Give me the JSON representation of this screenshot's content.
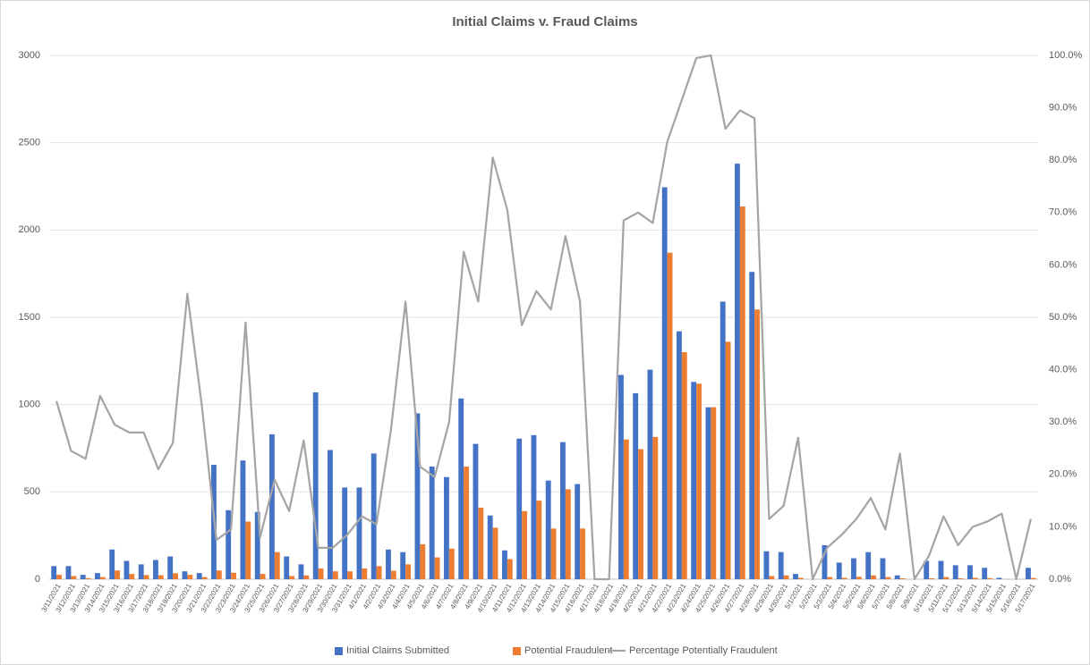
{
  "chart_data": {
    "type": "bar",
    "title": "Initial Claims v. Fraud Claims",
    "categories": [
      "3/11/2021",
      "3/12/2021",
      "3/13/2021",
      "3/14/2021",
      "3/15/2021",
      "3/16/2021",
      "3/17/2021",
      "3/18/2021",
      "3/19/2021",
      "3/20/2021",
      "3/21/2021",
      "3/22/2021",
      "3/23/2021",
      "3/24/2021",
      "3/25/2021",
      "3/26/2021",
      "3/27/2021",
      "3/28/2021",
      "3/29/2021",
      "3/30/2021",
      "3/31/2021",
      "4/1/2021",
      "4/2/2021",
      "4/3/2021",
      "4/4/2021",
      "4/5/2021",
      "4/6/2021",
      "4/7/2021",
      "4/8/2021",
      "4/9/2021",
      "4/10/2021",
      "4/11/2021",
      "4/12/2021",
      "4/13/2021",
      "4/14/2021",
      "4/15/2021",
      "4/16/2021",
      "4/17/2021",
      "4/18/2021",
      "4/19/2021",
      "4/20/2021",
      "4/21/2021",
      "4/22/2021",
      "4/23/2021",
      "4/24/2021",
      "4/25/2021",
      "4/26/2021",
      "4/27/2021",
      "4/28/2021",
      "4/29/2021",
      "4/30/2021",
      "5/1/2021",
      "5/2/2021",
      "5/3/2021",
      "5/4/2021",
      "5/5/2021",
      "5/6/2021",
      "5/7/2021",
      "5/8/2021",
      "5/9/2021",
      "5/10/2021",
      "5/11/2021",
      "5/12/2021",
      "5/13/2021",
      "5/14/2021",
      "5/15/2021",
      "5/16/2021",
      "5/17/2021"
    ],
    "series": [
      {
        "name": "Initial Claims Submitted",
        "type": "bar",
        "color": "#4472c4",
        "values": [
          75,
          75,
          25,
          35,
          170,
          105,
          85,
          110,
          130,
          45,
          35,
          655,
          395,
          680,
          385,
          830,
          130,
          85,
          1070,
          740,
          525,
          525,
          720,
          170,
          155,
          950,
          645,
          585,
          1035,
          775,
          365,
          165,
          805,
          825,
          565,
          785,
          545,
          0,
          0,
          1170,
          1065,
          1200,
          2245,
          1420,
          1130,
          985,
          1590,
          2380,
          1760,
          160,
          155,
          30,
          0,
          195,
          95,
          120,
          155,
          120,
          22,
          0,
          105,
          105,
          80,
          80,
          65,
          8,
          0,
          65
        ]
      },
      {
        "name": "Potential Fraudulent",
        "type": "bar",
        "color": "#ed7d31",
        "values": [
          25,
          18,
          6,
          12,
          50,
          30,
          24,
          23,
          34,
          25,
          12,
          50,
          37,
          330,
          30,
          155,
          18,
          22,
          62,
          45,
          45,
          62,
          75,
          48,
          85,
          200,
          125,
          175,
          645,
          410,
          295,
          115,
          390,
          450,
          290,
          515,
          290,
          0,
          0,
          800,
          745,
          815,
          1870,
          1300,
          1120,
          985,
          1360,
          2135,
          1545,
          18,
          22,
          8,
          0,
          12,
          8,
          14,
          22,
          12,
          5,
          0,
          5,
          12,
          5,
          8,
          6,
          1,
          0,
          7
        ]
      },
      {
        "name": "Percentage Potentially Fraudulent",
        "type": "line",
        "axis": "y2",
        "color": "#a5a5a5",
        "values": [
          34,
          24.5,
          23,
          35,
          29.5,
          28,
          28,
          21,
          26,
          54.5,
          33,
          7.5,
          9.5,
          49,
          8,
          19,
          13,
          26.5,
          6,
          6,
          8.5,
          12,
          10.5,
          28.5,
          53,
          21.5,
          19.5,
          30,
          62.5,
          53,
          80.5,
          70.5,
          48.5,
          55,
          51.5,
          65.5,
          53,
          0,
          0,
          68.5,
          70,
          68,
          83.5,
          91.5,
          99.5,
          100,
          86,
          89.5,
          88,
          11.5,
          14,
          27,
          0,
          6,
          8.5,
          11.5,
          15.5,
          9.5,
          24,
          0,
          4.5,
          12,
          6.5,
          10,
          11,
          12.5,
          0,
          11.5
        ]
      }
    ],
    "ylim": [
      0,
      3000
    ],
    "yticks": [
      0,
      500,
      1000,
      1500,
      2000,
      2500,
      3000
    ],
    "y2lim": [
      0,
      100
    ],
    "y2ticks": [
      {
        "value": 0,
        "label": "0.0%"
      },
      {
        "value": 10,
        "label": "10.0%"
      },
      {
        "value": 20,
        "label": "20.0%"
      },
      {
        "value": 30,
        "label": "30.0%"
      },
      {
        "value": 40,
        "label": "40.0%"
      },
      {
        "value": 50,
        "label": "50.0%"
      },
      {
        "value": 60,
        "label": "60.0%"
      },
      {
        "value": 70,
        "label": "70.0%"
      },
      {
        "value": 80,
        "label": "80.0%"
      },
      {
        "value": 90,
        "label": "90.0%"
      },
      {
        "value": 100,
        "label": "100.0%"
      }
    ],
    "grid": true,
    "legend": "bottom"
  }
}
